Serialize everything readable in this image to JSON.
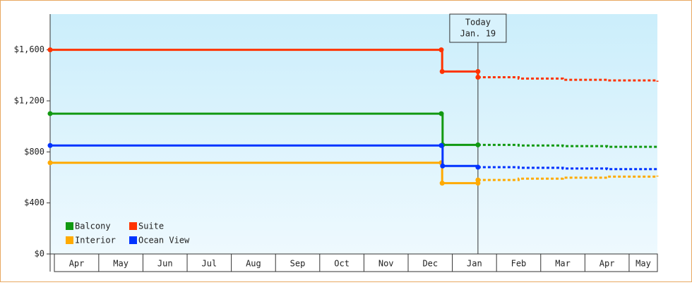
{
  "chart_data": {
    "type": "line",
    "step": true,
    "categories": [
      "Apr",
      "May",
      "Jun",
      "Jul",
      "Aug",
      "Sep",
      "Oct",
      "Nov",
      "Dec",
      "Jan",
      "Feb",
      "Mar",
      "Apr",
      "May"
    ],
    "xlim": [
      -0.1,
      13.64
    ],
    "ylim": [
      0,
      1880
    ],
    "yticks": [
      {
        "value": 0,
        "label": "$0"
      },
      {
        "value": 400,
        "label": "$400"
      },
      {
        "value": 800,
        "label": "$800"
      },
      {
        "value": 1200,
        "label": "$1,200"
      },
      {
        "value": 1600,
        "label": "$1,600"
      }
    ],
    "annotation": {
      "x": 9.58,
      "lines": [
        "Today",
        "Jan. 19"
      ]
    },
    "legend": "bottom-left",
    "series": [
      {
        "name": "Balcony",
        "color": "#119911",
        "x": [
          -0.1,
          8.75,
          8.78,
          9.58
        ],
        "values": [
          1100,
          1100,
          855,
          855
        ],
        "forecast": {
          "x": [
            9.58,
            10.5,
            11.5,
            12.5,
            13.64
          ],
          "values": [
            855,
            850,
            845,
            840,
            835
          ]
        }
      },
      {
        "name": "Suite",
        "color": "#ff3300",
        "x": [
          -0.1,
          8.75,
          8.77,
          9.58,
          9.58
        ],
        "values": [
          1600,
          1600,
          1430,
          1430,
          1385
        ],
        "forecast": {
          "x": [
            9.58,
            10.5,
            11.5,
            12.5,
            13.64
          ],
          "values": [
            1385,
            1375,
            1365,
            1360,
            1350
          ]
        }
      },
      {
        "name": "Interior",
        "color": "#ffaa00",
        "x": [
          -0.1,
          8.75,
          8.77,
          9.58,
          9.58
        ],
        "values": [
          715,
          715,
          555,
          555,
          580
        ],
        "forecast": {
          "x": [
            9.58,
            10.5,
            11.5,
            12.5,
            13.64
          ],
          "values": [
            580,
            590,
            598,
            606,
            614
          ]
        }
      },
      {
        "name": "Ocean View",
        "color": "#0033ff",
        "x": [
          -0.1,
          8.75,
          8.78,
          9.58
        ],
        "values": [
          850,
          850,
          690,
          680
        ],
        "forecast": {
          "x": [
            9.58,
            10.5,
            11.5,
            12.5,
            13.64
          ],
          "values": [
            680,
            675,
            670,
            665,
            660
          ]
        }
      }
    ]
  }
}
